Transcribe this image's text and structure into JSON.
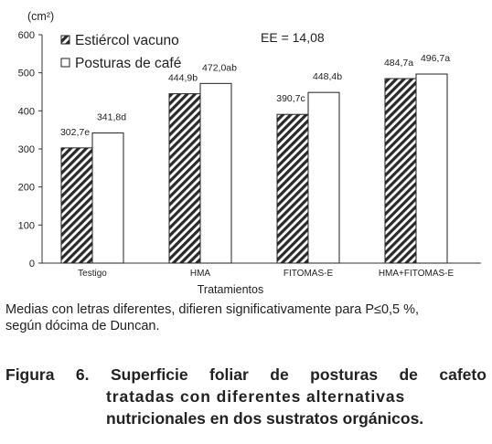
{
  "chart_data": {
    "type": "bar",
    "categories": [
      "Testigo",
      "HMA",
      "FITOMAS-E",
      "HMA+FITOMAS-E"
    ],
    "series": [
      {
        "name": "Estiércol vacuno",
        "values": [
          302.7,
          444.9,
          390.7,
          484.7
        ],
        "labels": [
          "302,7e",
          "444,9b",
          "390,7c",
          "484,7a"
        ],
        "pattern": "diagonal-hatch"
      },
      {
        "name": "Posturas de café",
        "values": [
          341.8,
          472.0,
          448.4,
          496.7
        ],
        "labels": [
          "341,8d",
          "472,0ab",
          "448,4b",
          "496,7a"
        ],
        "pattern": "white"
      }
    ],
    "ylabel": "(cm²)",
    "xlabel": "Tratamientos",
    "ylim": [
      0,
      600
    ],
    "yticks": [
      "0",
      "100",
      "200",
      "300",
      "400",
      "500",
      "600"
    ],
    "annotation": "EE = 14,08",
    "legend_position": "top-left",
    "grid": false
  },
  "note": {
    "line1": "Medias con letras diferentes, difieren significativamente para P≤0,5 %,",
    "line2": "según dócima de Duncan."
  },
  "figure": {
    "line1_words": [
      "Figura",
      "6.",
      "Superficie",
      "foliar",
      "de",
      "posturas",
      "de",
      "cafeto"
    ],
    "line2": "tratadas con diferentes alternativas",
    "line3": "nutricionales en dos sustratos orgánicos."
  }
}
